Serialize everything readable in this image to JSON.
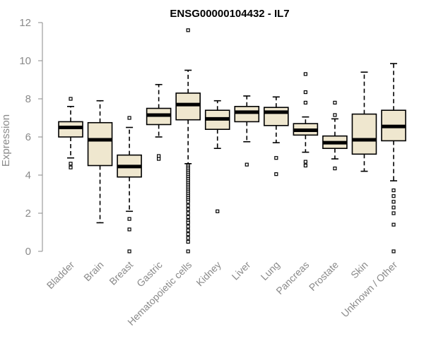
{
  "chart_data": {
    "type": "boxplot",
    "title": "ENSG00000104432 - IL7",
    "xlabel": "",
    "ylabel": "Expression",
    "ylim": [
      0,
      12
    ],
    "yticks": [
      0,
      2,
      4,
      6,
      8,
      10,
      12
    ],
    "grid": false,
    "legend": false,
    "colors": {
      "box_fill": "#efe7cf",
      "stroke": "#000000",
      "axis_text": "#8a8a8a"
    },
    "categories": [
      "Bladder",
      "Brain",
      "Breast",
      "Gastric",
      "Hematopoietic cells",
      "Kidney",
      "Liver",
      "Lung",
      "Pancreas",
      "Prostate",
      "Skin",
      "Unknown / Other"
    ],
    "boxes": [
      {
        "name": "Bladder",
        "whisker_low": 4.9,
        "q1": 6.0,
        "median": 6.5,
        "q3": 6.8,
        "whisker_high": 7.6,
        "outliers": [
          4.4,
          4.6,
          8.0
        ]
      },
      {
        "name": "Brain",
        "whisker_low": 1.5,
        "q1": 4.5,
        "median": 5.85,
        "q3": 6.75,
        "whisker_high": 7.9,
        "outliers": []
      },
      {
        "name": "Breast",
        "whisker_low": 2.1,
        "q1": 3.9,
        "median": 4.45,
        "q3": 5.05,
        "whisker_high": 6.5,
        "outliers": [
          1.7,
          1.15,
          0.0,
          7.0
        ]
      },
      {
        "name": "Gastric",
        "whisker_low": 6.0,
        "q1": 6.65,
        "median": 7.15,
        "q3": 7.5,
        "whisker_high": 8.75,
        "outliers": [
          5.0,
          4.85
        ]
      },
      {
        "name": "Hematopoietic cells",
        "whisker_low": 4.6,
        "q1": 6.9,
        "median": 7.7,
        "q3": 8.3,
        "whisker_high": 9.5,
        "outliers": [
          11.6,
          4.5,
          4.4,
          4.3,
          4.2,
          4.1,
          4.0,
          3.9,
          3.8,
          3.7,
          3.6,
          3.5,
          3.4,
          3.3,
          3.2,
          3.1,
          3.0,
          2.9,
          2.8,
          2.7,
          2.6,
          2.4,
          2.2,
          2.0,
          1.8,
          1.6,
          1.5,
          1.3,
          1.1,
          0.9,
          0.7,
          0.5,
          0.0
        ]
      },
      {
        "name": "Kidney",
        "whisker_low": 5.4,
        "q1": 6.4,
        "median": 6.95,
        "q3": 7.4,
        "whisker_high": 7.9,
        "outliers": [
          2.1
        ]
      },
      {
        "name": "Liver",
        "whisker_low": 5.75,
        "q1": 6.8,
        "median": 7.3,
        "q3": 7.6,
        "whisker_high": 8.15,
        "outliers": [
          4.55
        ]
      },
      {
        "name": "Lung",
        "whisker_low": 5.7,
        "q1": 6.6,
        "median": 7.3,
        "q3": 7.55,
        "whisker_high": 8.1,
        "outliers": [
          4.9,
          4.05
        ]
      },
      {
        "name": "Pancreas",
        "whisker_low": 5.2,
        "q1": 6.1,
        "median": 6.35,
        "q3": 6.7,
        "whisker_high": 7.05,
        "outliers": [
          9.3,
          8.35,
          7.8,
          4.7,
          4.5
        ]
      },
      {
        "name": "Prostate",
        "whisker_low": 4.85,
        "q1": 5.4,
        "median": 5.7,
        "q3": 6.05,
        "whisker_high": 6.95,
        "outliers": [
          7.8,
          7.15,
          4.35
        ]
      },
      {
        "name": "Skin",
        "whisker_low": 4.2,
        "q1": 5.1,
        "median": 5.85,
        "q3": 7.2,
        "whisker_high": 9.4,
        "outliers": []
      },
      {
        "name": "Unknown / Other",
        "whisker_low": 3.7,
        "q1": 5.8,
        "median": 6.55,
        "q3": 7.4,
        "whisker_high": 9.85,
        "outliers": [
          3.2,
          2.9,
          2.6,
          2.3,
          2.0,
          1.4,
          0.0
        ]
      }
    ]
  }
}
